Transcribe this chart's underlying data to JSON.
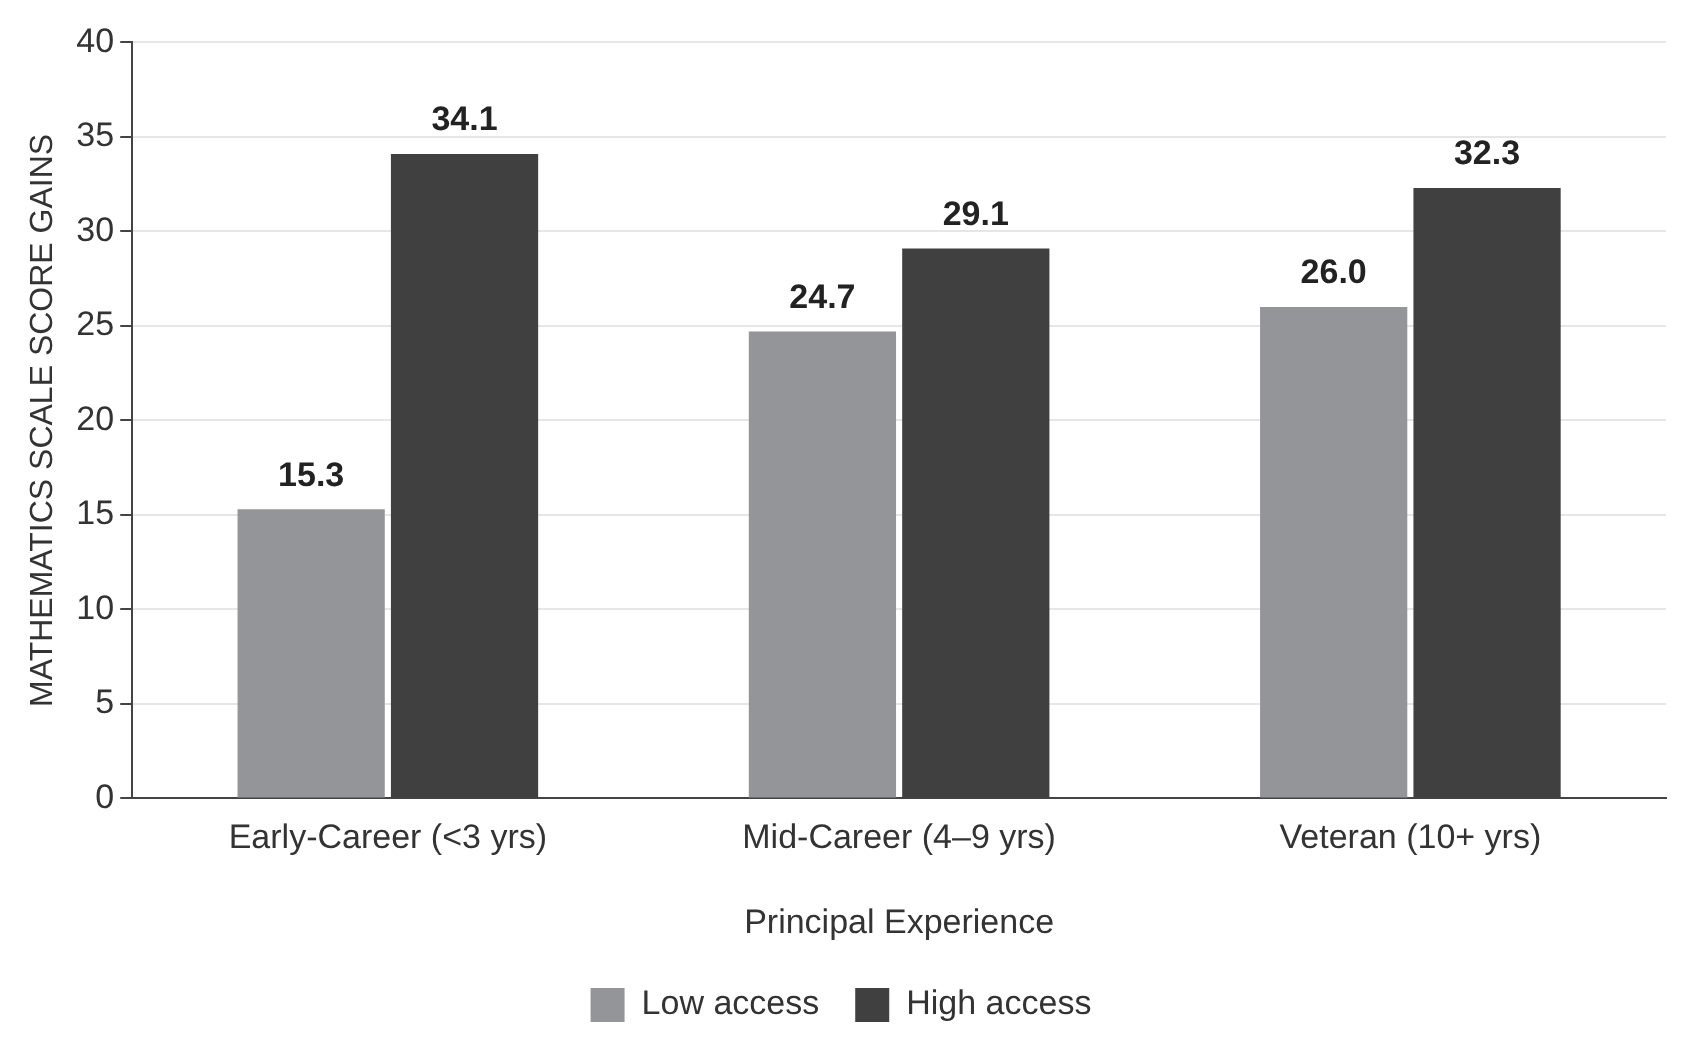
{
  "chart_data": {
    "type": "bar",
    "xlabel": "Principal Experience",
    "ylabel": "MATHEMATICS SCALE SCORE GAINS",
    "categories": [
      "Early-Career (<3 yrs)",
      "Mid-Career (4–9 yrs)",
      "Veteran (10+ yrs)"
    ],
    "series": [
      {
        "name": "Low access",
        "color": "#939598",
        "values": [
          15.3,
          24.7,
          26.0
        ],
        "value_labels": [
          "15.3",
          "24.7",
          "26.0"
        ]
      },
      {
        "name": "High access",
        "color": "#404040",
        "values": [
          34.1,
          29.1,
          32.3
        ],
        "value_labels": [
          "34.1",
          "29.1",
          "32.3"
        ]
      }
    ],
    "ylim": [
      0,
      40
    ],
    "yticks": [
      0,
      5,
      10,
      15,
      20,
      25,
      30,
      35,
      40
    ],
    "grid": "y",
    "legend": "bottom"
  }
}
